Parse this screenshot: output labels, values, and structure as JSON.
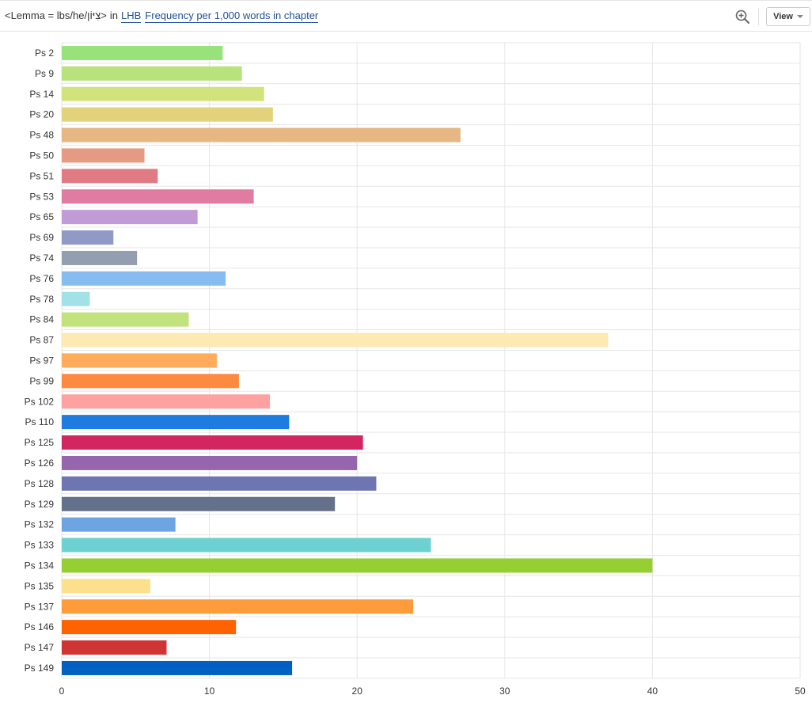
{
  "toolbar": {
    "query_text": "<Lemma = lbs/he/צִיּוֹן>",
    "in_text": "in",
    "corpus_link": "LHB",
    "measure_link": "Frequency per 1,000 words in chapter",
    "zoom_icon": "zoom-in-icon",
    "view_label": "View"
  },
  "chart_data": {
    "type": "bar",
    "orientation": "horizontal",
    "title": "",
    "xlabel": "",
    "ylabel": "",
    "xlim": [
      0,
      50
    ],
    "x_ticks": [
      0,
      10,
      20,
      30,
      40,
      50
    ],
    "grid": true,
    "categories": [
      "Ps 2",
      "Ps 9",
      "Ps 14",
      "Ps 20",
      "Ps 48",
      "Ps 50",
      "Ps 51",
      "Ps 53",
      "Ps 65",
      "Ps 69",
      "Ps 74",
      "Ps 76",
      "Ps 78",
      "Ps 84",
      "Ps 87",
      "Ps 97",
      "Ps 99",
      "Ps 102",
      "Ps 110",
      "Ps 125",
      "Ps 126",
      "Ps 128",
      "Ps 129",
      "Ps 132",
      "Ps 133",
      "Ps 134",
      "Ps 135",
      "Ps 137",
      "Ps 146",
      "Ps 147",
      "Ps 149"
    ],
    "values": [
      10.9,
      12.2,
      13.7,
      14.3,
      27.0,
      5.6,
      6.5,
      13.0,
      9.2,
      3.5,
      5.1,
      11.1,
      1.9,
      8.6,
      37.0,
      10.5,
      12.0,
      14.1,
      15.4,
      20.4,
      20.0,
      21.3,
      18.5,
      7.7,
      25.0,
      40.0,
      6.0,
      23.8,
      11.8,
      7.1,
      15.6
    ],
    "colors": [
      "#98e27c",
      "#b8e27c",
      "#d2e27c",
      "#e2d27c",
      "#e6b683",
      "#e69a83",
      "#e07b86",
      "#e07ca1",
      "#c19bd6",
      "#9199c7",
      "#939fb0",
      "#87bcf0",
      "#a2e2e6",
      "#c1e27c",
      "#fde9b3",
      "#feab5b",
      "#fe8a3f",
      "#fda1a1",
      "#1e7be0",
      "#d3255f",
      "#9566ad",
      "#6f75b0",
      "#65718a",
      "#6ea4e2",
      "#6dd1d1",
      "#95cf32",
      "#fde08d",
      "#fe9b3b",
      "#fe6300",
      "#cf3535",
      "#0061c2"
    ]
  }
}
